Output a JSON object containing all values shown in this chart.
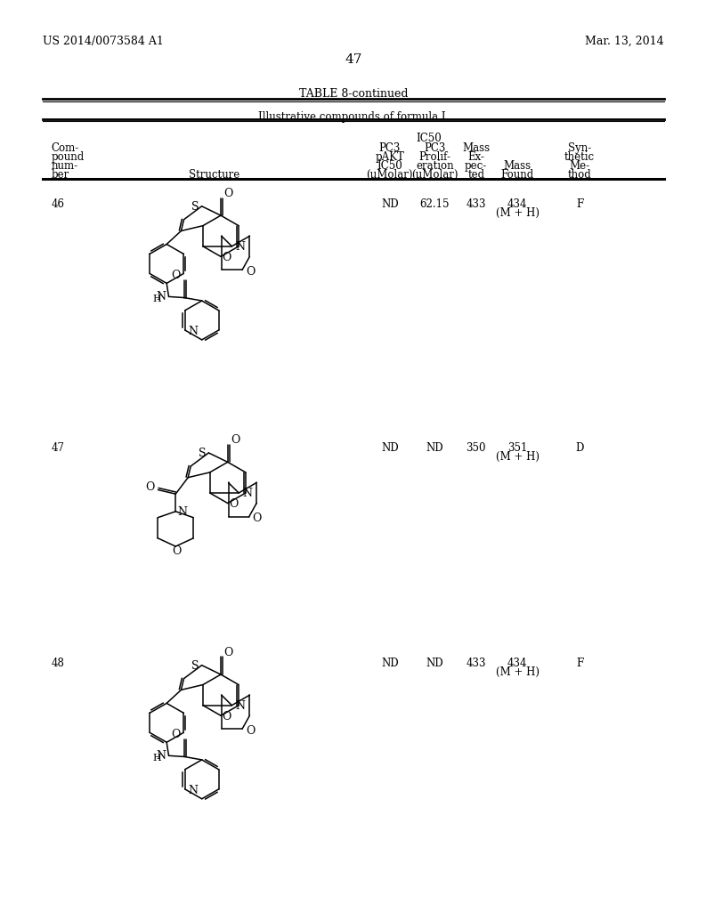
{
  "page_number": "47",
  "patent_number": "US 2014/0073584 A1",
  "patent_date": "Mar. 13, 2014",
  "table_title": "TABLE 8-continued",
  "table_subtitle": "Illustrative compounds of formula I.",
  "compounds": [
    {
      "number": "46",
      "pc3_pakt": "ND",
      "pc3_prolif": "62.15",
      "mass_exp": "433",
      "mass_found": "434",
      "mass_found2": "(M + H)",
      "method": "F"
    },
    {
      "number": "47",
      "pc3_pakt": "ND",
      "pc3_prolif": "ND",
      "mass_exp": "350",
      "mass_found": "351",
      "mass_found2": "(M + H)",
      "method": "D"
    },
    {
      "number": "48",
      "pc3_pakt": "ND",
      "pc3_prolif": "ND",
      "mass_exp": "433",
      "mass_found": "434",
      "mass_found2": "(M + H)",
      "method": "F"
    }
  ],
  "bg_color": "#ffffff",
  "text_color": "#000000"
}
